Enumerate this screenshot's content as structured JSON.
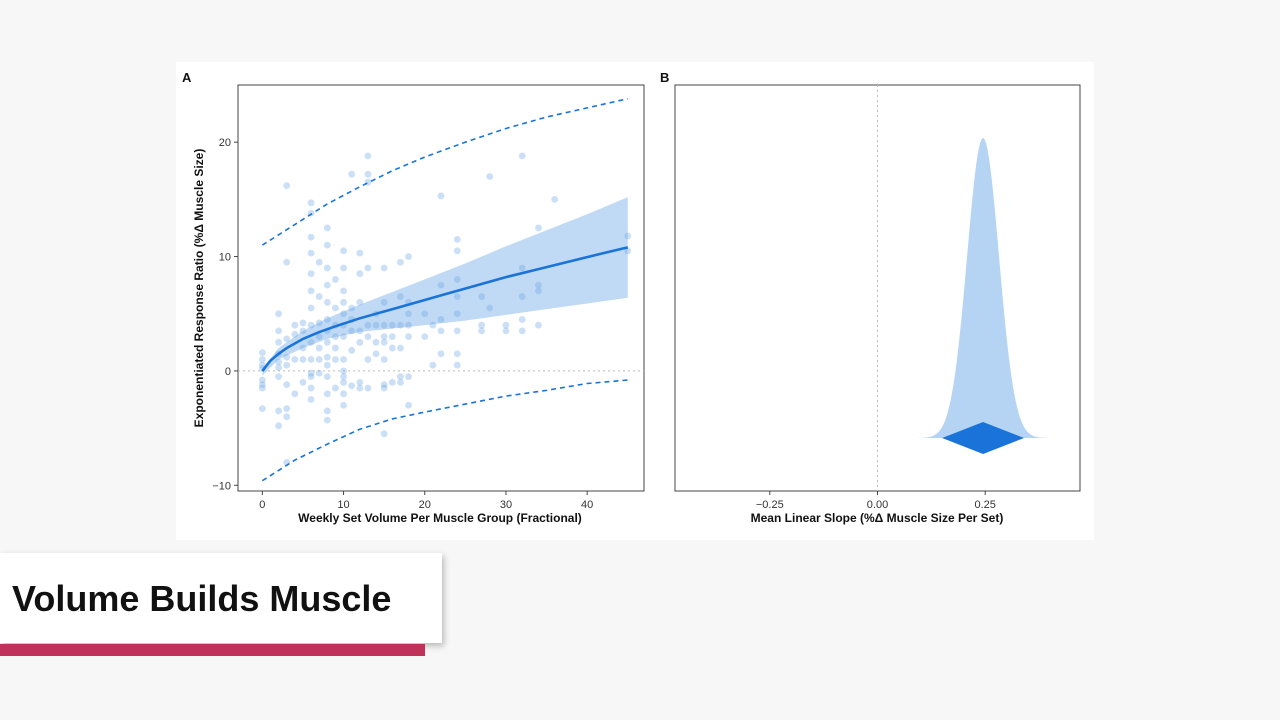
{
  "lower_third": {
    "title": "Volume Builds Muscle",
    "accent_color": "#c0325a"
  },
  "chart_data": [
    {
      "panel": "A",
      "type": "scatter",
      "xlabel": "Weekly Set Volume Per Muscle Group (Fractional)",
      "ylabel": "Exponentiated Response Ratio (%Δ Muscle Size)",
      "xlim": [
        -3,
        47
      ],
      "ylim": [
        -10.5,
        25
      ],
      "xticks": [
        "0",
        "10",
        "20",
        "30",
        "40"
      ],
      "yticks": [
        "−10",
        "0",
        "10",
        "20"
      ],
      "color": "#1a73d9",
      "band_color": "#b5d4f3",
      "reference_line_y": 0,
      "points": [
        [
          0,
          -3.3
        ],
        [
          0,
          -1.5
        ],
        [
          0,
          -1.2
        ],
        [
          0,
          0.5
        ],
        [
          0,
          1.0
        ],
        [
          0,
          1.6
        ],
        [
          0,
          -0.8
        ],
        [
          0,
          0.2
        ],
        [
          2,
          -0.5
        ],
        [
          2,
          0.3
        ],
        [
          2,
          0.8
        ],
        [
          2,
          1.5
        ],
        [
          2,
          2.5
        ],
        [
          2,
          3.5
        ],
        [
          2,
          5.0
        ],
        [
          2,
          -4.8
        ],
        [
          2,
          -3.5
        ],
        [
          3,
          16.2
        ],
        [
          3,
          9.5
        ],
        [
          3,
          -8.0
        ],
        [
          3,
          -3.3
        ],
        [
          3,
          -1.2
        ],
        [
          3,
          0.5
        ],
        [
          3,
          1.2
        ],
        [
          3,
          2.8
        ],
        [
          3,
          -4.0
        ],
        [
          4,
          1.0
        ],
        [
          4,
          4.0
        ],
        [
          4,
          -2.0
        ],
        [
          4,
          3.2
        ],
        [
          5,
          2.0
        ],
        [
          5,
          3.5
        ],
        [
          5,
          -1.0
        ],
        [
          5,
          1.0
        ],
        [
          5,
          4.2
        ],
        [
          6,
          14.7
        ],
        [
          6,
          13.8
        ],
        [
          6,
          11.7
        ],
        [
          6,
          10.3
        ],
        [
          6,
          8.5
        ],
        [
          6,
          7.0
        ],
        [
          6,
          5.5
        ],
        [
          6,
          4.0
        ],
        [
          6,
          2.5
        ],
        [
          6,
          1.0
        ],
        [
          6,
          -0.5
        ],
        [
          6,
          -1.5
        ],
        [
          6,
          -2.5
        ],
        [
          6,
          -0.2
        ],
        [
          7,
          9.5
        ],
        [
          7,
          6.5
        ],
        [
          7,
          4.2
        ],
        [
          7,
          3.0
        ],
        [
          7,
          -0.2
        ],
        [
          7,
          2.0
        ],
        [
          7,
          1.0
        ],
        [
          8,
          12.5
        ],
        [
          8,
          11.0
        ],
        [
          8,
          9.0
        ],
        [
          8,
          7.5
        ],
        [
          8,
          6.0
        ],
        [
          8,
          4.5
        ],
        [
          8,
          3.5
        ],
        [
          8,
          2.5
        ],
        [
          8,
          1.2
        ],
        [
          8,
          -0.5
        ],
        [
          8,
          -2.0
        ],
        [
          8,
          -4.3
        ],
        [
          8,
          -3.5
        ],
        [
          8,
          0.5
        ],
        [
          9,
          8.0
        ],
        [
          9,
          5.5
        ],
        [
          9,
          3.0
        ],
        [
          9,
          1.0
        ],
        [
          9,
          -1.5
        ],
        [
          9,
          4.0
        ],
        [
          9,
          2.0
        ],
        [
          10,
          10.5
        ],
        [
          10,
          9.0
        ],
        [
          10,
          7.0
        ],
        [
          10,
          5.0
        ],
        [
          10,
          3.0
        ],
        [
          10,
          1.0
        ],
        [
          10,
          0.0
        ],
        [
          10,
          -0.5
        ],
        [
          10,
          -1.0
        ],
        [
          10,
          -2.0
        ],
        [
          10,
          -3.0
        ],
        [
          10,
          4.0
        ],
        [
          10,
          6.0
        ],
        [
          11,
          17.2
        ],
        [
          11,
          5.5
        ],
        [
          11,
          3.5
        ],
        [
          11,
          1.8
        ],
        [
          11,
          -1.3
        ],
        [
          11,
          4.5
        ],
        [
          12,
          10.3
        ],
        [
          12,
          8.5
        ],
        [
          12,
          6.0
        ],
        [
          12,
          3.5
        ],
        [
          12,
          -1.5
        ],
        [
          12,
          -1.0
        ],
        [
          12,
          2.5
        ],
        [
          13,
          18.8
        ],
        [
          13,
          17.2
        ],
        [
          13,
          16.5
        ],
        [
          13,
          9.0
        ],
        [
          13,
          4.0
        ],
        [
          13,
          3.0
        ],
        [
          13,
          -1.5
        ],
        [
          13,
          1.0
        ],
        [
          14,
          5.0
        ],
        [
          14,
          2.5
        ],
        [
          14,
          1.5
        ],
        [
          14,
          4.0
        ],
        [
          15,
          9.0
        ],
        [
          15,
          6.0
        ],
        [
          15,
          4.0
        ],
        [
          15,
          2.5
        ],
        [
          15,
          1.0
        ],
        [
          15,
          -1.2
        ],
        [
          15,
          -5.5
        ],
        [
          15,
          -1.5
        ],
        [
          15,
          3.0
        ],
        [
          16,
          4.0
        ],
        [
          16,
          2.0
        ],
        [
          16,
          -1.0
        ],
        [
          16,
          3.0
        ],
        [
          17,
          9.5
        ],
        [
          17,
          6.5
        ],
        [
          17,
          4.0
        ],
        [
          17,
          2.0
        ],
        [
          17,
          -1.0
        ],
        [
          17,
          -0.5
        ],
        [
          18,
          10.0
        ],
        [
          18,
          6.0
        ],
        [
          18,
          5.0
        ],
        [
          18,
          4.0
        ],
        [
          18,
          3.0
        ],
        [
          18,
          -3.0
        ],
        [
          18,
          -0.5
        ],
        [
          20,
          5.0
        ],
        [
          20,
          3.0
        ],
        [
          21,
          4.0
        ],
        [
          21,
          0.5
        ],
        [
          22,
          15.3
        ],
        [
          22,
          7.5
        ],
        [
          22,
          4.5
        ],
        [
          22,
          3.5
        ],
        [
          22,
          1.5
        ],
        [
          24,
          11.5
        ],
        [
          24,
          10.5
        ],
        [
          24,
          8.0
        ],
        [
          24,
          6.5
        ],
        [
          24,
          5.0
        ],
        [
          24,
          3.5
        ],
        [
          24,
          1.5
        ],
        [
          24,
          0.5
        ],
        [
          27,
          6.5
        ],
        [
          27,
          4.0
        ],
        [
          27,
          3.5
        ],
        [
          28,
          17.0
        ],
        [
          28,
          5.5
        ],
        [
          30,
          4.0
        ],
        [
          30,
          3.5
        ],
        [
          32,
          18.8
        ],
        [
          32,
          9.0
        ],
        [
          32,
          6.5
        ],
        [
          32,
          4.5
        ],
        [
          32,
          3.5
        ],
        [
          34,
          12.5
        ],
        [
          34,
          7.5
        ],
        [
          34,
          7.0
        ],
        [
          34,
          4.0
        ],
        [
          36,
          15.0
        ],
        [
          45,
          11.8
        ],
        [
          45,
          10.5
        ]
      ],
      "fit_curve": {
        "x": [
          0,
          1,
          2,
          3,
          5,
          7,
          9,
          12,
          15,
          18,
          22,
          26,
          30,
          34,
          38,
          42,
          45
        ],
        "y": [
          0,
          0.9,
          1.5,
          2.0,
          2.8,
          3.4,
          3.9,
          4.6,
          5.2,
          5.8,
          6.6,
          7.4,
          8.2,
          8.9,
          9.6,
          10.3,
          10.8
        ]
      },
      "ci_band": {
        "x": [
          0,
          2,
          5,
          8,
          12,
          16,
          20,
          25,
          30,
          35,
          40,
          45
        ],
        "upper": [
          0.2,
          2.0,
          3.5,
          4.6,
          5.8,
          6.9,
          8.0,
          9.4,
          10.9,
          12.3,
          13.7,
          15.2
        ],
        "lower": [
          -0.4,
          1.0,
          2.0,
          2.8,
          3.4,
          3.7,
          4.0,
          4.4,
          4.9,
          5.4,
          5.9,
          6.4
        ]
      },
      "prediction_upper": {
        "x": [
          0,
          4,
          8,
          12,
          16,
          20,
          25,
          30,
          35,
          40,
          45
        ],
        "y": [
          11.0,
          12.8,
          14.6,
          16.1,
          17.5,
          18.7,
          20.0,
          21.2,
          22.2,
          23.0,
          23.8
        ]
      },
      "prediction_lower": {
        "x": [
          0,
          4,
          8,
          12,
          16,
          20,
          25,
          30,
          35,
          40,
          45
        ],
        "y": [
          -9.6,
          -7.8,
          -6.4,
          -5.1,
          -4.2,
          -3.6,
          -2.9,
          -2.2,
          -1.7,
          -1.1,
          -0.8
        ]
      }
    },
    {
      "panel": "B",
      "type": "area",
      "xlabel": "Mean Linear Slope (%Δ Muscle Size Per Set)",
      "xlim": [
        -0.47,
        0.47
      ],
      "xticks": [
        "−0.25",
        "0.00",
        "0.25"
      ],
      "xtick_values": [
        -0.25,
        0,
        0.25
      ],
      "reference_line_x": 0,
      "density_color": "#b5d4f3",
      "estimate_color": "#1a73d9",
      "mean": 0.245,
      "density_sd": 0.037,
      "density_range": [
        0.07,
        0.42
      ],
      "interval": [
        0.15,
        0.34
      ]
    }
  ]
}
